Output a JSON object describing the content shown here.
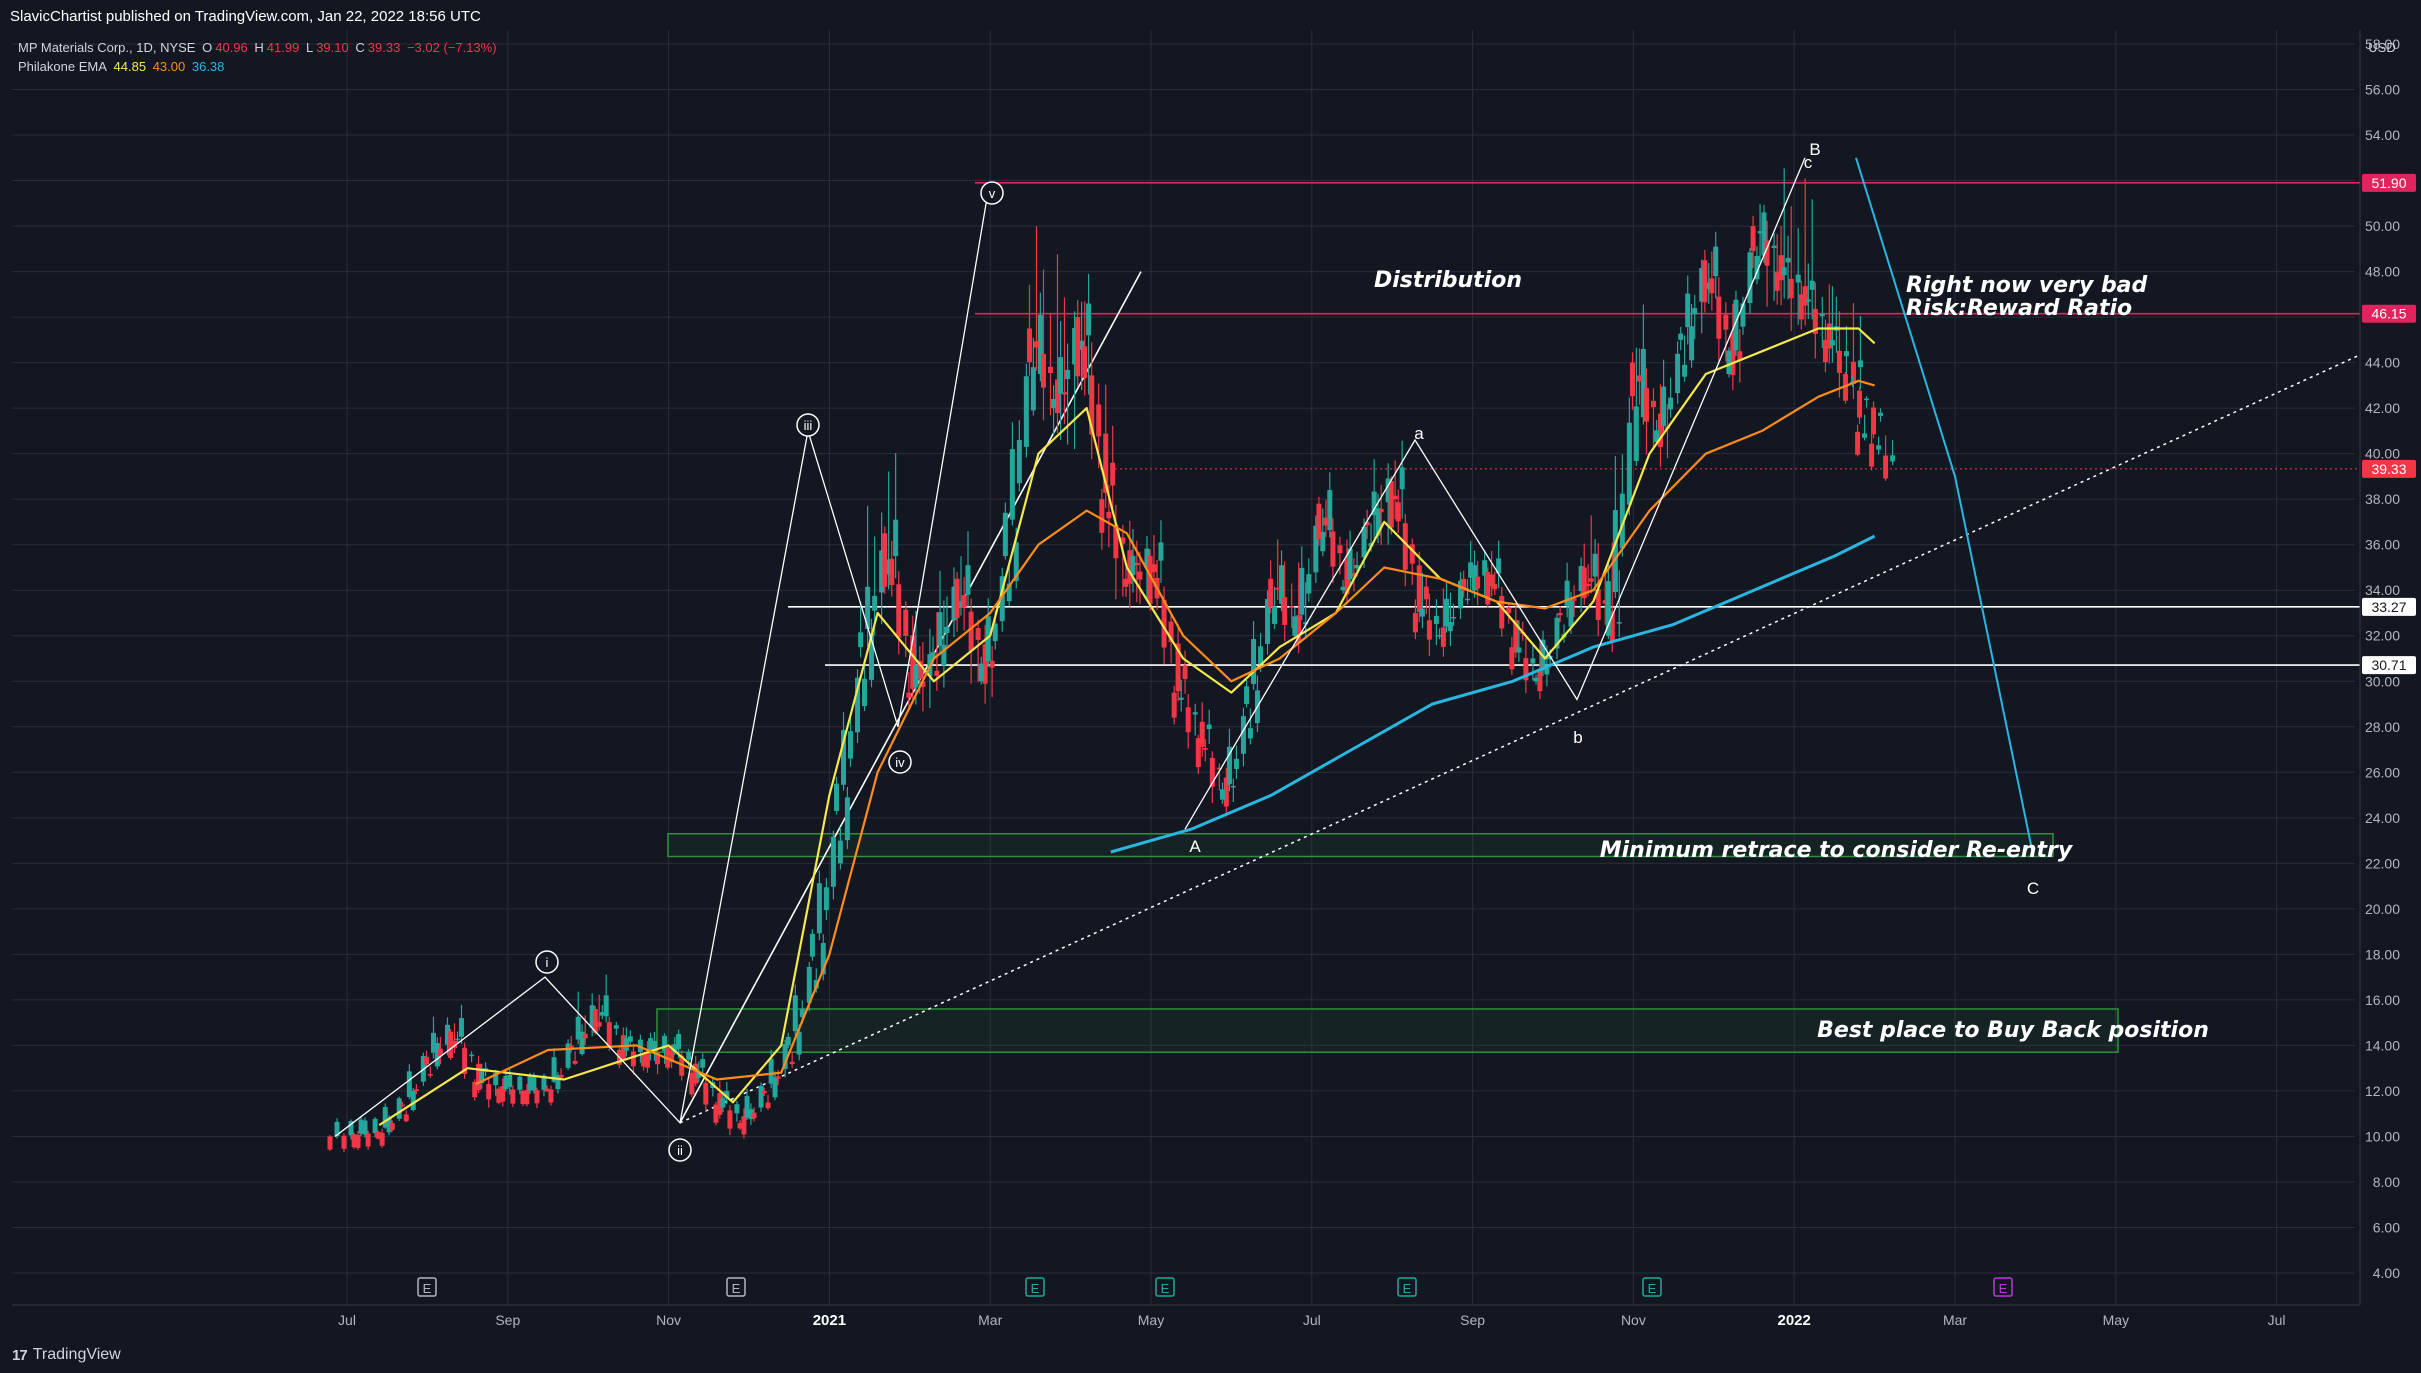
{
  "header": {
    "published": "SlavicChartist published on TradingView.com, Jan 22, 2022 18:56 UTC"
  },
  "legend": {
    "symbol": "MP Materials Corp., 1D, NYSE",
    "open_label": "O",
    "open": "40.96",
    "high_label": "H",
    "high": "41.99",
    "low_label": "L",
    "low": "39.10",
    "close_label": "C",
    "close": "39.33",
    "change": "−3.02 (−7.13%)",
    "indicator": "Philakone EMA",
    "ema1": "44.85",
    "ema2": "43.00",
    "ema3": "36.38",
    "colors": {
      "ohlc": "#f23645",
      "ema1": "#f5e84a",
      "ema2": "#ff8c1a",
      "ema3": "#2ab6e0"
    }
  },
  "footer": {
    "brand": "TradingView"
  },
  "chart_data": {
    "type": "candlestick",
    "currency": "USD",
    "ylim": [
      3,
      59.5
    ],
    "y_ticks": [
      "4.00",
      "6.00",
      "8.00",
      "10.00",
      "12.00",
      "14.00",
      "16.00",
      "18.00",
      "20.00",
      "22.00",
      "24.00",
      "26.00",
      "28.00",
      "30.00",
      "32.00",
      "34.00",
      "36.00",
      "38.00",
      "40.00",
      "42.00",
      "44.00",
      "46.00",
      "48.00",
      "50.00",
      "52.00",
      "54.00",
      "56.00",
      "58.00"
    ],
    "x_ticks": [
      "Jul",
      "Sep",
      "Nov",
      "2021",
      "Mar",
      "May",
      "Jul",
      "Sep",
      "Nov",
      "2022",
      "Mar",
      "May",
      "Jul"
    ],
    "x_ticks_bold": [
      "2021",
      "2022"
    ],
    "price_markers": [
      {
        "value": 51.9,
        "label": "51.90",
        "color": "#e0245e"
      },
      {
        "value": 46.15,
        "label": "46.15",
        "color": "#e0245e"
      },
      {
        "value": 39.33,
        "label": "39.33",
        "color": "#f23645"
      },
      {
        "value": 33.27,
        "label": "33.27",
        "color": "#ffffff"
      },
      {
        "value": 30.71,
        "label": "30.71",
        "color": "#ffffff"
      }
    ],
    "candles_ohlc": [
      [
        10.0,
        10.3,
        9.8,
        10.1
      ],
      [
        10.1,
        10.4,
        9.9,
        10.2
      ],
      [
        10.2,
        11.6,
        10.1,
        11.4
      ],
      [
        11.4,
        13.9,
        11.2,
        13.5
      ],
      [
        13.5,
        15.5,
        13.0,
        14.6
      ],
      [
        14.6,
        15.0,
        12.1,
        12.4
      ],
      [
        12.4,
        12.8,
        11.6,
        12.1
      ],
      [
        12.1,
        12.4,
        11.8,
        12.0
      ],
      [
        12.0,
        12.3,
        11.7,
        12.1
      ],
      [
        12.1,
        14.5,
        12.0,
        14.0
      ],
      [
        14.0,
        17.0,
        13.6,
        15.6
      ],
      [
        15.6,
        16.0,
        13.5,
        13.8
      ],
      [
        13.8,
        14.4,
        13.1,
        13.6
      ],
      [
        13.6,
        14.2,
        13.0,
        13.9
      ],
      [
        13.9,
        14.3,
        12.5,
        12.8
      ],
      [
        12.8,
        13.4,
        11.0,
        11.4
      ],
      [
        11.4,
        11.8,
        10.2,
        10.6
      ],
      [
        10.6,
        12.4,
        10.4,
        12.0
      ],
      [
        12.0,
        14.5,
        11.6,
        14.0
      ],
      [
        14.0,
        18.5,
        13.6,
        17.9
      ],
      [
        17.9,
        25.0,
        17.3,
        24.3
      ],
      [
        24.3,
        32.5,
        23.8,
        31.5
      ],
      [
        31.5,
        41.0,
        30.0,
        36.5
      ],
      [
        36.5,
        37.5,
        28.5,
        29.5
      ],
      [
        29.5,
        34.0,
        28.0,
        31.0
      ],
      [
        31.0,
        36.8,
        30.2,
        34.5
      ],
      [
        34.5,
        35.5,
        28.0,
        30.0
      ],
      [
        30.0,
        36.5,
        29.5,
        35.5
      ],
      [
        35.5,
        47.0,
        35.0,
        45.5
      ],
      [
        45.5,
        51.9,
        40.0,
        42.0
      ],
      [
        42.0,
        48.0,
        38.0,
        46.0
      ],
      [
        46.0,
        48.5,
        36.5,
        38.0
      ],
      [
        38.0,
        39.5,
        32.0,
        34.5
      ],
      [
        34.5,
        37.0,
        33.0,
        35.5
      ],
      [
        35.5,
        36.5,
        28.5,
        29.5
      ],
      [
        29.5,
        30.5,
        26.5,
        27.5
      ],
      [
        27.5,
        28.0,
        23.8,
        24.8
      ],
      [
        24.8,
        30.0,
        24.2,
        29.0
      ],
      [
        29.0,
        35.5,
        28.5,
        34.5
      ],
      [
        34.5,
        37.2,
        31.0,
        32.0
      ],
      [
        32.0,
        39.0,
        31.5,
        37.8
      ],
      [
        37.8,
        38.8,
        33.0,
        34.0
      ],
      [
        34.0,
        38.0,
        33.5,
        37.0
      ],
      [
        37.0,
        40.6,
        35.0,
        38.8
      ],
      [
        38.8,
        39.5,
        32.0,
        33.0
      ],
      [
        33.0,
        35.0,
        31.0,
        32.0
      ],
      [
        32.0,
        35.5,
        31.5,
        34.5
      ],
      [
        34.5,
        36.0,
        33.5,
        34.8
      ],
      [
        34.8,
        35.5,
        31.0,
        31.5
      ],
      [
        31.5,
        33.0,
        29.2,
        30.0
      ],
      [
        30.0,
        33.5,
        29.5,
        33.0
      ],
      [
        33.0,
        36.0,
        32.0,
        35.0
      ],
      [
        35.0,
        38.5,
        31.0,
        32.0
      ],
      [
        32.0,
        47.0,
        31.5,
        44.0
      ],
      [
        44.0,
        45.5,
        38.5,
        40.5
      ],
      [
        40.5,
        46.5,
        40.0,
        45.0
      ],
      [
        45.0,
        49.5,
        43.5,
        48.5
      ],
      [
        48.5,
        50.0,
        42.0,
        43.5
      ],
      [
        43.5,
        50.5,
        43.0,
        50.0
      ],
      [
        50.0,
        51.5,
        45.5,
        48.0
      ],
      [
        48.0,
        53.5,
        45.0,
        47.0
      ],
      [
        47.0,
        49.0,
        43.5,
        45.0
      ],
      [
        45.0,
        48.0,
        42.0,
        43.5
      ],
      [
        43.5,
        43.8,
        40.8,
        41.2
      ],
      [
        40.96,
        41.99,
        39.1,
        39.33
      ]
    ],
    "candles_x_month": [
      6.0,
      6.3,
      6.6,
      6.9,
      7.2,
      7.5,
      7.8,
      8.1,
      8.4,
      8.7,
      9.0,
      9.3,
      9.6,
      9.9,
      10.2,
      10.5,
      10.8,
      11.1,
      11.4,
      11.7,
      12.0,
      12.3,
      12.6,
      12.9,
      13.2,
      13.5,
      13.8,
      14.1,
      14.4,
      14.7,
      15.0,
      15.3,
      15.6,
      15.9,
      16.2,
      16.5,
      16.8,
      17.1,
      17.4,
      17.7,
      18.0,
      18.3,
      18.6,
      18.9,
      19.2,
      19.5,
      19.8,
      20.1,
      20.4,
      20.7,
      21.0,
      21.3,
      21.6,
      21.9,
      22.2,
      22.5,
      22.8,
      23.1,
      23.4,
      23.7,
      24.0,
      24.3,
      24.6,
      24.85,
      25.0
    ],
    "x_month_note_hidden": true,
    "ema_series": [
      {
        "name": "",
        "color": "#f5e84a",
        "x_month": [
          6.4,
          7.5,
          8.7,
          10.0,
          10.8,
          11.4,
          12.0,
          12.6,
          13.3,
          14.0,
          14.6,
          15.2,
          15.7,
          16.4,
          17.0,
          17.6,
          18.3,
          18.9,
          19.6,
          20.3,
          20.9,
          21.5,
          22.2,
          22.9,
          23.6,
          24.3,
          24.8,
          25.0
        ],
        "y": [
          10.5,
          13.0,
          12.5,
          14.0,
          11.5,
          14.0,
          25.0,
          33.0,
          30.0,
          32.0,
          40.0,
          42.0,
          35.0,
          31.0,
          29.5,
          31.5,
          33.0,
          37.0,
          34.5,
          33.5,
          31.0,
          33.5,
          40.0,
          43.5,
          44.5,
          45.5,
          45.5,
          44.85
        ]
      },
      {
        "name": "",
        "color": "#ff8c1a",
        "x_month": [
          7.6,
          8.5,
          9.6,
          10.6,
          11.4,
          12.0,
          12.6,
          13.3,
          14.0,
          14.6,
          15.2,
          15.7,
          16.4,
          17.0,
          17.6,
          18.3,
          18.9,
          19.6,
          20.3,
          20.9,
          21.5,
          22.2,
          22.9,
          23.6,
          24.3,
          24.8,
          25.0
        ],
        "y": [
          12.3,
          13.8,
          14.0,
          12.5,
          12.8,
          18.0,
          26.0,
          31.0,
          33.0,
          36.0,
          37.5,
          36.5,
          32.0,
          30.0,
          31.0,
          33.0,
          35.0,
          34.5,
          33.5,
          33.2,
          34.0,
          37.5,
          40.0,
          41.0,
          42.5,
          43.2,
          43.0
        ]
      },
      {
        "name": "",
        "color": "#2ab6e0",
        "x_month": [
          15.5,
          16.5,
          17.5,
          18.5,
          19.5,
          20.5,
          21.5,
          22.5,
          23.5,
          24.5,
          25.0
        ],
        "y": [
          22.5,
          23.5,
          25.0,
          27.0,
          29.0,
          30.0,
          31.5,
          32.5,
          34.0,
          35.5,
          36.38
        ]
      }
    ],
    "annotations": {
      "wave_labels": [
        "i",
        "ii",
        "iii",
        "iv",
        "v"
      ],
      "abc_labels": [
        "A",
        "a",
        "b",
        "c",
        "B",
        "C"
      ],
      "texts": [
        "Distribution",
        "Right now very bad",
        "Risk:Reward Ratio",
        "Minimum retrace to consider Re-entry",
        "Best place to Buy Back position"
      ],
      "zones": [
        {
          "label": "Minimum retrace to consider Re-entry",
          "y1": 22.3,
          "y2": 23.3,
          "color": "#2f8f3e"
        },
        {
          "label": "Best place to Buy Back position",
          "y1": 13.7,
          "y2": 15.6,
          "color": "#2f8f3e"
        }
      ],
      "earnings_markers": [
        {
          "label": "E",
          "color": "#b2b5be"
        },
        {
          "label": "E",
          "color": "#b2b5be"
        },
        {
          "label": "E",
          "color": "#26a69a"
        },
        {
          "label": "E",
          "color": "#26a69a"
        },
        {
          "label": "E",
          "color": "#26a69a"
        },
        {
          "label": "E",
          "color": "#26a69a"
        },
        {
          "label": "E",
          "color": "#b83bd6"
        }
      ]
    },
    "grid": true,
    "colors": {
      "up": "#26a69a",
      "down": "#f23645",
      "grid": "#2a2e39",
      "axis_text": "#b2b5be"
    }
  }
}
